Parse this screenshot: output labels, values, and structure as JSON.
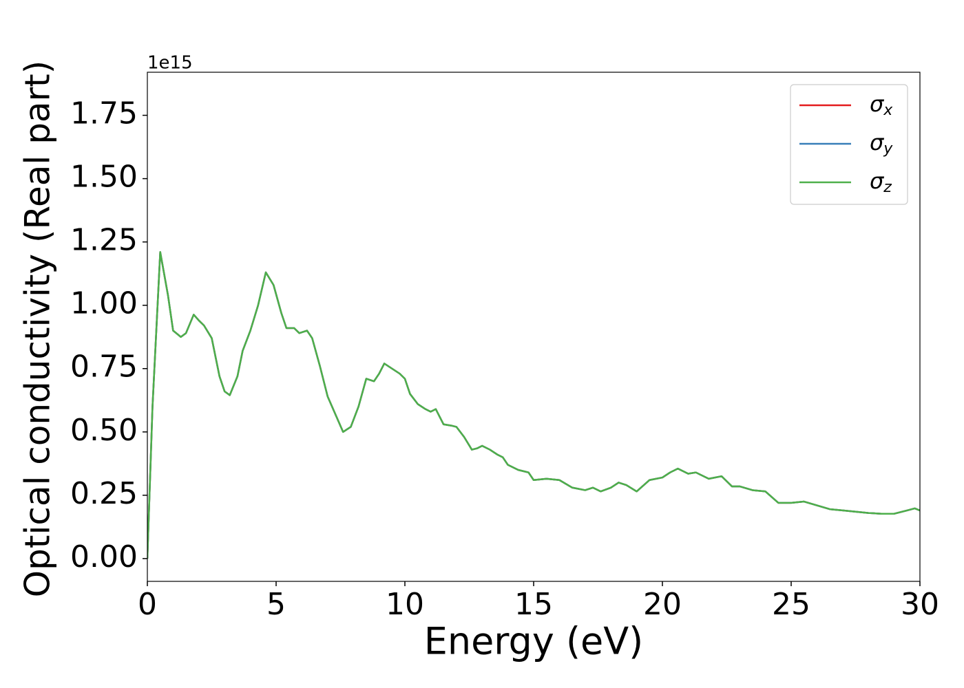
{
  "chart_data": {
    "type": "line",
    "xlabel": "Energy (eV)",
    "ylabel": "Optical conductivity (Real part)",
    "y_offset_label": "1e15",
    "x": [
      0,
      0.1,
      0.2,
      0.5,
      0.8,
      1.0,
      1.3,
      1.5,
      1.8,
      2.0,
      2.2,
      2.5,
      2.8,
      3.0,
      3.2,
      3.5,
      3.7,
      4.0,
      4.3,
      4.6,
      4.9,
      5.2,
      5.4,
      5.7,
      5.9,
      6.2,
      6.4,
      6.7,
      7.0,
      7.3,
      7.6,
      7.9,
      8.2,
      8.5,
      8.8,
      9.0,
      9.2,
      9.5,
      9.8,
      10.0,
      10.2,
      10.5,
      10.8,
      11.0,
      11.2,
      11.5,
      11.8,
      12.0,
      12.3,
      12.6,
      12.8,
      13.0,
      13.3,
      13.6,
      13.8,
      14.0,
      14.4,
      14.8,
      15.0,
      15.5,
      16.0,
      16.5,
      17.0,
      17.3,
      17.6,
      18.0,
      18.3,
      18.6,
      19.0,
      19.5,
      20.0,
      20.3,
      20.6,
      21.0,
      21.3,
      21.8,
      22.3,
      22.7,
      23.0,
      23.5,
      24.0,
      24.5,
      25.0,
      25.5,
      26.0,
      26.5,
      27.0,
      27.5,
      28.0,
      28.5,
      29.0,
      29.5,
      29.8,
      30.0
    ],
    "series": [
      {
        "name": "σx",
        "color": "#e41a1c",
        "values": [
          0,
          0.3,
          0.6,
          1.21,
          1.04,
          0.9,
          0.875,
          0.89,
          0.963,
          0.94,
          0.92,
          0.87,
          0.72,
          0.66,
          0.645,
          0.72,
          0.82,
          0.9,
          1.0,
          1.13,
          1.08,
          0.97,
          0.91,
          0.91,
          0.89,
          0.9,
          0.87,
          0.76,
          0.64,
          0.57,
          0.5,
          0.52,
          0.6,
          0.71,
          0.7,
          0.73,
          0.77,
          0.75,
          0.73,
          0.71,
          0.65,
          0.61,
          0.59,
          0.58,
          0.59,
          0.53,
          0.525,
          0.52,
          0.48,
          0.43,
          0.435,
          0.445,
          0.43,
          0.41,
          0.4,
          0.37,
          0.35,
          0.34,
          0.31,
          0.315,
          0.31,
          0.28,
          0.27,
          0.28,
          0.265,
          0.28,
          0.3,
          0.29,
          0.265,
          0.31,
          0.32,
          0.34,
          0.355,
          0.335,
          0.34,
          0.315,
          0.325,
          0.285,
          0.285,
          0.27,
          0.265,
          0.22,
          0.22,
          0.225,
          0.21,
          0.195,
          0.19,
          0.185,
          0.18,
          0.177,
          0.177,
          0.19,
          0.198,
          0.19
        ]
      },
      {
        "name": "σy",
        "color": "#377eb8",
        "values": [
          0,
          0.3,
          0.6,
          1.21,
          1.04,
          0.9,
          0.875,
          0.89,
          0.963,
          0.94,
          0.92,
          0.87,
          0.72,
          0.66,
          0.645,
          0.72,
          0.82,
          0.9,
          1.0,
          1.13,
          1.08,
          0.97,
          0.91,
          0.91,
          0.89,
          0.9,
          0.87,
          0.76,
          0.64,
          0.57,
          0.5,
          0.52,
          0.6,
          0.71,
          0.7,
          0.73,
          0.77,
          0.75,
          0.73,
          0.71,
          0.65,
          0.61,
          0.59,
          0.58,
          0.59,
          0.53,
          0.525,
          0.52,
          0.48,
          0.43,
          0.435,
          0.445,
          0.43,
          0.41,
          0.4,
          0.37,
          0.35,
          0.34,
          0.31,
          0.315,
          0.31,
          0.28,
          0.27,
          0.28,
          0.265,
          0.28,
          0.3,
          0.29,
          0.265,
          0.31,
          0.32,
          0.34,
          0.355,
          0.335,
          0.34,
          0.315,
          0.325,
          0.285,
          0.285,
          0.27,
          0.265,
          0.22,
          0.22,
          0.225,
          0.21,
          0.195,
          0.19,
          0.185,
          0.18,
          0.177,
          0.177,
          0.19,
          0.198,
          0.19
        ]
      },
      {
        "name": "σz",
        "color": "#4daf4a",
        "values": [
          0,
          0.3,
          0.6,
          1.21,
          1.04,
          0.9,
          0.875,
          0.89,
          0.963,
          0.94,
          0.92,
          0.87,
          0.72,
          0.66,
          0.645,
          0.72,
          0.82,
          0.9,
          1.0,
          1.13,
          1.08,
          0.97,
          0.91,
          0.91,
          0.89,
          0.9,
          0.87,
          0.76,
          0.64,
          0.57,
          0.5,
          0.52,
          0.6,
          0.71,
          0.7,
          0.73,
          0.77,
          0.75,
          0.73,
          0.71,
          0.65,
          0.61,
          0.59,
          0.58,
          0.59,
          0.53,
          0.525,
          0.52,
          0.48,
          0.43,
          0.435,
          0.445,
          0.43,
          0.41,
          0.4,
          0.37,
          0.35,
          0.34,
          0.31,
          0.315,
          0.31,
          0.28,
          0.27,
          0.28,
          0.265,
          0.28,
          0.3,
          0.29,
          0.265,
          0.31,
          0.32,
          0.34,
          0.355,
          0.335,
          0.34,
          0.315,
          0.325,
          0.285,
          0.285,
          0.27,
          0.265,
          0.22,
          0.22,
          0.225,
          0.21,
          0.195,
          0.19,
          0.185,
          0.18,
          0.177,
          0.177,
          0.19,
          0.198,
          0.19
        ]
      }
    ],
    "xlim": [
      0,
      30
    ],
    "xticks": [
      0,
      5,
      10,
      15,
      20,
      25,
      30
    ],
    "ylim": [
      -0.09,
      1.92
    ],
    "yticks": [
      {
        "value": 0,
        "label": "0.00"
      },
      0.25,
      {
        "value": 0.5,
        "label": "0.50"
      },
      0.75,
      {
        "value": 1,
        "label": "1.00"
      },
      1.25,
      {
        "value": 1.5,
        "label": "1.50"
      },
      1.75
    ],
    "legend": "upper right",
    "grid": false
  }
}
